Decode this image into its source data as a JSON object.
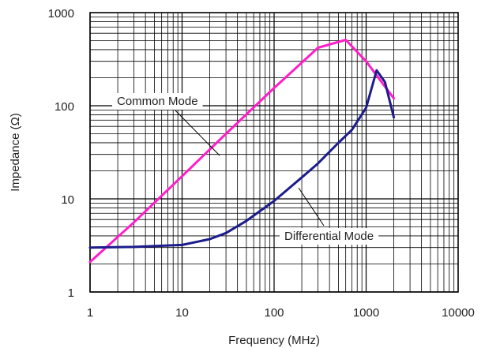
{
  "chart_data": {
    "type": "line",
    "title": "",
    "xlabel": "Frequency (MHz)",
    "ylabel": "Impedance (Ω)",
    "x_scale": "log",
    "y_scale": "log",
    "xlim": [
      1,
      10000
    ],
    "ylim": [
      1,
      1000
    ],
    "grid": true,
    "x_tick_labels": [
      "1",
      "10",
      "100",
      "1000",
      "10000"
    ],
    "x_tick_values": [
      1,
      10,
      100,
      1000,
      10000
    ],
    "y_tick_labels": [
      "1",
      "10",
      "100",
      "1000"
    ],
    "y_tick_values": [
      1,
      10,
      100,
      1000
    ],
    "series": [
      {
        "name": "Common Mode",
        "color": "#ff1ec8",
        "x": [
          1,
          3,
          10,
          30,
          100,
          300,
          600,
          1000,
          2000
        ],
        "y": [
          2.1,
          5.6,
          17.5,
          50,
          155,
          420,
          510,
          300,
          120
        ]
      },
      {
        "name": "Differential Mode",
        "color": "#1c1c8c",
        "x": [
          1,
          3,
          10,
          20,
          30,
          50,
          100,
          200,
          300,
          500,
          700,
          1000,
          1300,
          1600,
          2000
        ],
        "y": [
          3.0,
          3.05,
          3.2,
          3.7,
          4.3,
          5.8,
          9.5,
          17,
          24,
          40,
          55,
          95,
          240,
          180,
          75
        ]
      }
    ],
    "annotations": [
      {
        "text": "Common Mode",
        "points_to": "Common Mode"
      },
      {
        "text": "Differential Mode",
        "points_to": "Differential Mode"
      }
    ]
  }
}
